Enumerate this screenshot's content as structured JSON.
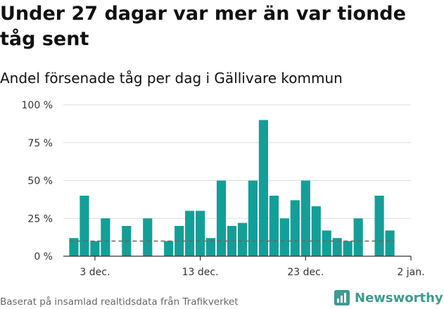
{
  "header": {
    "title": "Under 27 dagar var mer än var tionde tåg sent",
    "subtitle": "Andel försenade tåg per dag i Gällivare kommun"
  },
  "footer": {
    "source": "Baserat på insamlad realtidsdata från Trafikverket",
    "brand": "Newsworthy"
  },
  "colors": {
    "bar": "#139f97",
    "reference_line": "#666666",
    "grid": "#dddddd",
    "brand": "#3d9b8f"
  },
  "chart_data": {
    "type": "bar",
    "x_type": "date",
    "x": [
      "2023-12-01",
      "2023-12-02",
      "2023-12-03",
      "2023-12-04",
      "2023-12-06",
      "2023-12-08",
      "2023-12-10",
      "2023-12-11",
      "2023-12-12",
      "2023-12-13",
      "2023-12-14",
      "2023-12-15",
      "2023-12-16",
      "2023-12-17",
      "2023-12-18",
      "2023-12-19",
      "2023-12-20",
      "2023-12-21",
      "2023-12-22",
      "2023-12-23",
      "2023-12-24",
      "2023-12-25",
      "2023-12-26",
      "2023-12-27",
      "2023-12-28",
      "2023-12-30",
      "2023-12-31"
    ],
    "values": [
      12,
      40,
      10,
      25,
      20,
      25,
      10,
      20,
      30,
      30,
      12,
      50,
      20,
      22,
      50,
      90,
      40,
      25,
      37,
      50,
      33,
      17,
      12,
      10,
      25,
      40,
      17
    ],
    "reference_line": 10,
    "ylim": [
      0,
      100
    ],
    "y_ticks": [
      0,
      25,
      50,
      75,
      100
    ],
    "y_tick_labels": [
      "0 %",
      "25 %",
      "50 %",
      "75 %",
      "100 %"
    ],
    "x_ticks": [
      "2023-12-03",
      "2023-12-13",
      "2023-12-23",
      "2024-01-02"
    ],
    "x_tick_labels": [
      "3 dec.",
      "13 dec.",
      "23 dec.",
      "2 jan."
    ],
    "xlim": [
      "2023-11-30",
      "2024-01-02"
    ],
    "grid": true
  }
}
